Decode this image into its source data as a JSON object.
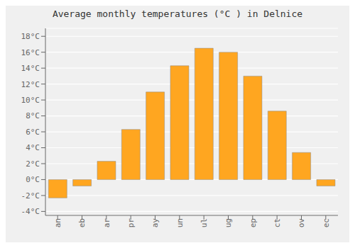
{
  "chart_data": {
    "type": "bar",
    "title": "Average monthly temperatures (°C ) in Delnice",
    "categories": [
      "an",
      "eb",
      "ar",
      "pr",
      "ay",
      "un",
      "ul",
      "ug",
      "ep",
      "ct",
      "ov",
      "ec"
    ],
    "values": [
      -2.3,
      -0.8,
      2.3,
      6.3,
      11.0,
      14.3,
      16.5,
      16.0,
      13.0,
      8.6,
      3.4,
      -0.8
    ],
    "color": "#FFA620",
    "ylim": [
      -4.5,
      19
    ],
    "yticks": [
      {
        "value": -4,
        "label": "-4°C"
      },
      {
        "value": -2,
        "label": "-2°C"
      },
      {
        "value": 0,
        "label": "0°C"
      },
      {
        "value": 2,
        "label": "2°C"
      },
      {
        "value": 4,
        "label": "4°C"
      },
      {
        "value": 6,
        "label": "6°C"
      },
      {
        "value": 8,
        "label": "8°C"
      },
      {
        "value": 10,
        "label": "10°C"
      },
      {
        "value": 12,
        "label": "12°C"
      },
      {
        "value": 14,
        "label": "14°C"
      },
      {
        "value": 16,
        "label": "16°C"
      },
      {
        "value": 18,
        "label": "18°C"
      }
    ],
    "grid": true
  }
}
